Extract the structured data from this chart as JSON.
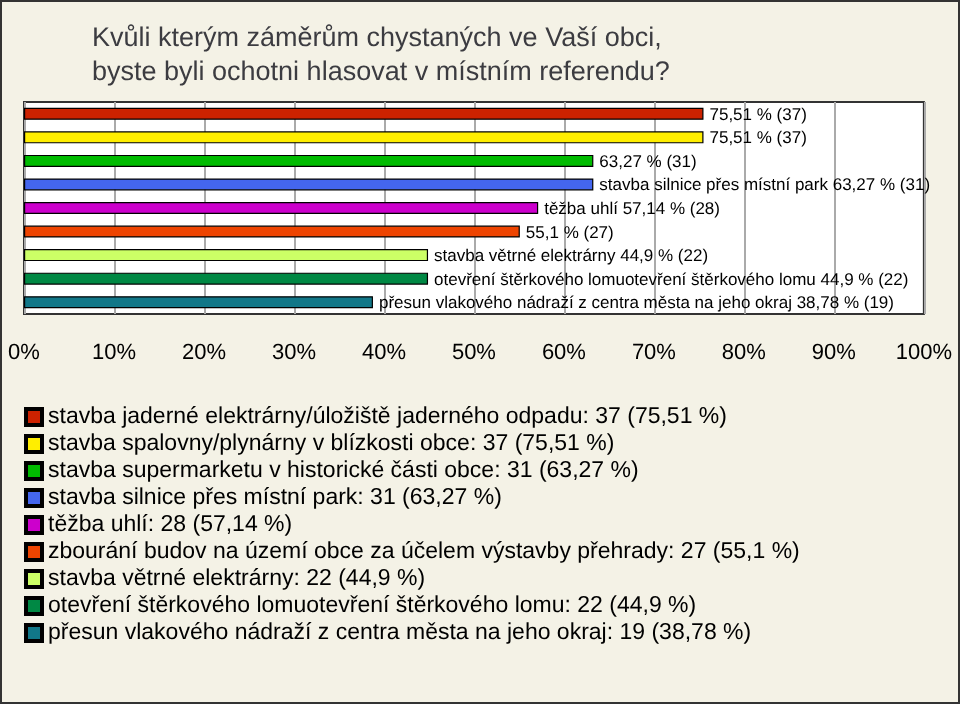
{
  "chart_data": {
    "type": "bar",
    "orientation": "horizontal",
    "stacked": true,
    "title": "Kvůli kterým záměrům chystaných ve Vaší obci, byste byli ochotni hlasovat v místním referendu?",
    "categories": [
      null,
      null,
      null,
      null,
      null,
      null,
      null,
      null,
      null
    ],
    "series": [
      {
        "name": "stavba jaderné elektrárny/úložiště jaderného odpadu: 37 (75,51 %)",
        "color": "#cc2200",
        "values": [
          75.51,
          null,
          null,
          null,
          null,
          null,
          null,
          null,
          null
        ],
        "value_labels": [
          "75,51 % (37)",
          null,
          null,
          null,
          null,
          null,
          null,
          null,
          null
        ]
      },
      {
        "name": "stavba spalovny/plynárny v blízkosti obce: 37 (75,51 %)",
        "color": "#ffee00",
        "values": [
          null,
          75.51,
          null,
          null,
          null,
          null,
          null,
          null,
          null
        ],
        "value_labels": [
          null,
          "75,51 % (37)",
          null,
          null,
          null,
          null,
          null,
          null,
          null
        ]
      },
      {
        "name": "stavba supermarketu v historické části obce: 31 (63,27 %)",
        "color": "#00bb00",
        "values": [
          null,
          null,
          63.27,
          null,
          null,
          null,
          null,
          null,
          null
        ],
        "value_labels": [
          null,
          null,
          "63,27 % (31)",
          null,
          null,
          null,
          null,
          null,
          null
        ]
      },
      {
        "name": "stavba silnice přes místní park: 31 (63,27 %)",
        "color": "#4466ee",
        "values": [
          null,
          null,
          null,
          63.27,
          null,
          null,
          null,
          null,
          null
        ],
        "value_labels": [
          null,
          null,
          null,
          "stavba silnice přes místní park 63,27 % (31)",
          null,
          null,
          null,
          null,
          null
        ]
      },
      {
        "name": "těžba uhlí: 28 (57,14 %)",
        "color": "#cc00cc",
        "values": [
          null,
          null,
          null,
          null,
          57.14,
          null,
          null,
          null,
          null
        ],
        "value_labels": [
          null,
          null,
          null,
          null,
          "těžba uhlí 57,14 % (28)",
          null,
          null,
          null,
          null
        ]
      },
      {
        "name": "zbourání budov na území obce za účelem výstavby přehrady: 27 (55,1 %)",
        "color": "#ee4400",
        "values": [
          null,
          null,
          null,
          null,
          null,
          55.1,
          null,
          null,
          null
        ],
        "value_labels": [
          null,
          null,
          null,
          null,
          null,
          "55,1 % (27)",
          null,
          null,
          null
        ]
      },
      {
        "name": "stavba větrné elektrárny: 22 (44,9 %)",
        "color": "#ccff66",
        "values": [
          null,
          null,
          null,
          null,
          null,
          null,
          44.9,
          null,
          null
        ],
        "value_labels": [
          null,
          null,
          null,
          null,
          null,
          null,
          "stavba větrné elektrárny 44,9 % (22)",
          null,
          null
        ]
      },
      {
        "name": "otevření štěrkového lomuotevření štěrkového lomu: 22 (44,9 %)",
        "color": "#008844",
        "values": [
          null,
          null,
          null,
          null,
          null,
          null,
          null,
          44.9,
          null
        ],
        "value_labels": [
          null,
          null,
          null,
          null,
          null,
          null,
          null,
          "otevření štěrkového lomuotevření štěrkového lomu 44,9 % (22)",
          null
        ]
      },
      {
        "name": "přesun vlakového nádraží z centra města na jeho okraj: 19 (38,78 %)",
        "color": "#117788",
        "values": [
          null,
          null,
          null,
          null,
          null,
          null,
          null,
          null,
          38.78
        ],
        "value_labels": [
          null,
          null,
          null,
          null,
          null,
          null,
          null,
          null,
          "přesun vlakového nádraží z centra města na jeho okraj 38,78 % (19)"
        ]
      }
    ],
    "xlim": [
      0,
      100
    ],
    "xticks": [
      {
        "value": 0,
        "label": "0%"
      },
      {
        "value": 10,
        "label": "10%"
      },
      {
        "value": 20,
        "label": "20%"
      },
      {
        "value": 30,
        "label": "30%"
      },
      {
        "value": 40,
        "label": "40%"
      },
      {
        "value": 50,
        "label": "50%"
      },
      {
        "value": 60,
        "label": "60%"
      },
      {
        "value": 70,
        "label": "70%"
      },
      {
        "value": 80,
        "label": "80%"
      },
      {
        "value": 90,
        "label": "90%"
      },
      {
        "value": 100,
        "label": "100%"
      }
    ],
    "grid": "x",
    "legend": "bottom"
  }
}
